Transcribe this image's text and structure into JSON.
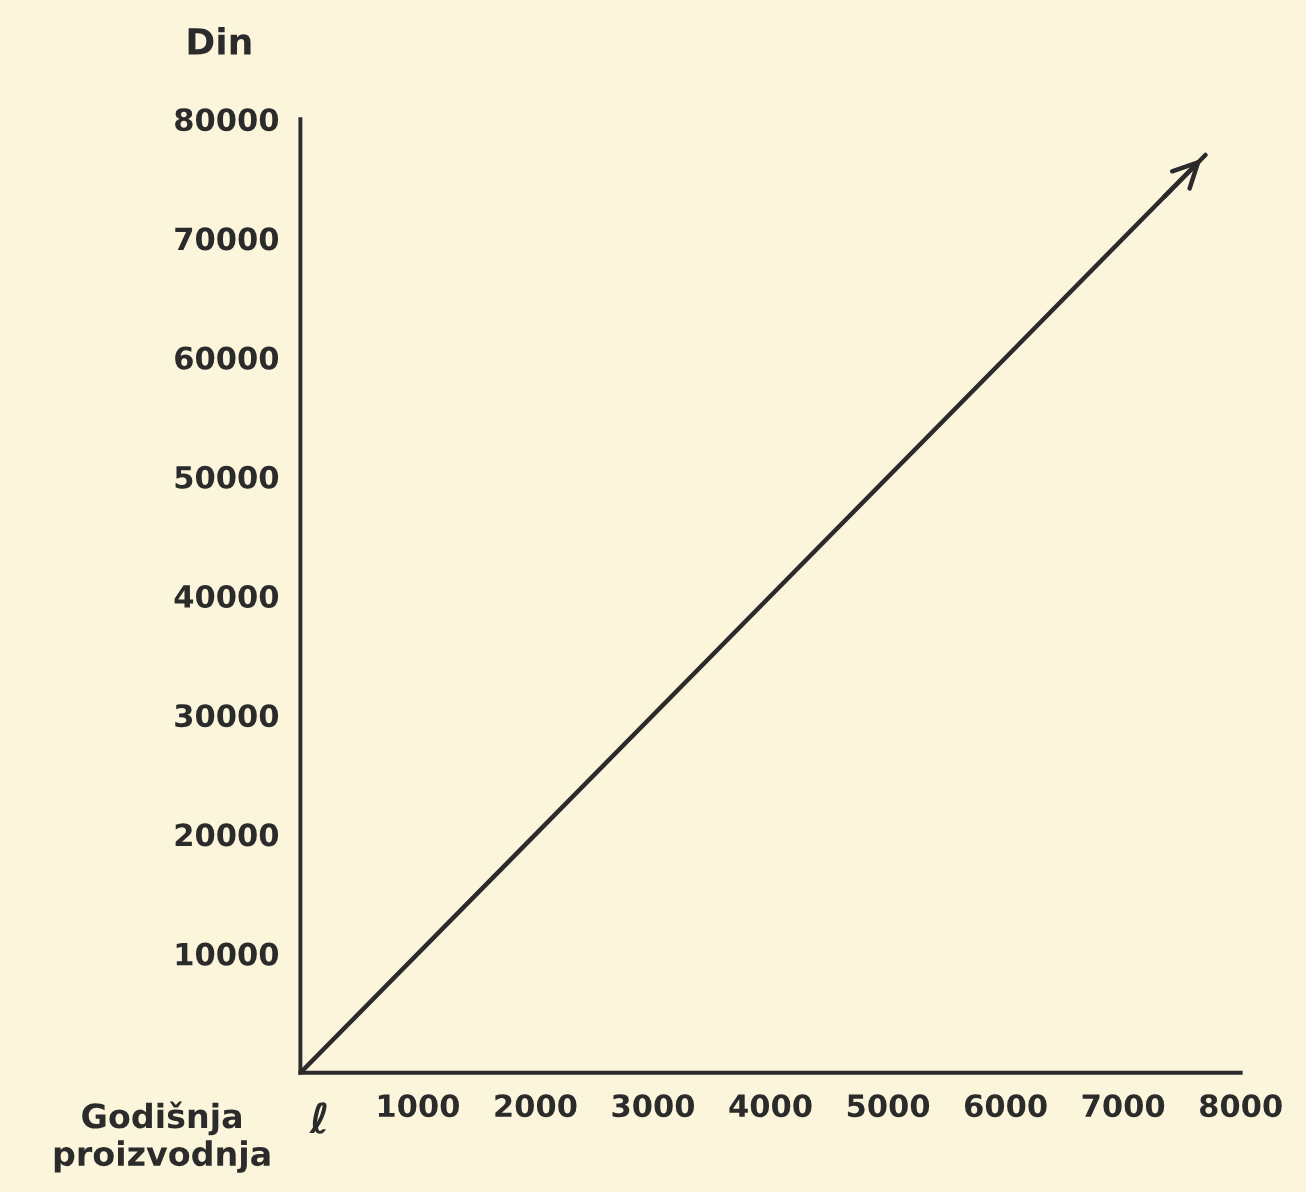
{
  "chart_data": {
    "type": "line",
    "ylabel": "Din",
    "xlabel": "Godišnja proizvodnja",
    "annotations": [
      "ℓ"
    ],
    "x": [
      0,
      7700
    ],
    "series": [
      {
        "color": "#2b2b2b",
        "values": [
          0,
          77000
        ]
      }
    ],
    "xlim": [
      0,
      8000
    ],
    "ylim": [
      0,
      80000
    ],
    "xticks": [
      1000,
      2000,
      3000,
      4000,
      5000,
      6000,
      7000,
      8000
    ],
    "yticks": [
      10000,
      20000,
      30000,
      40000,
      50000,
      60000,
      70000,
      80000
    ],
    "grid": false,
    "legend": false,
    "marker": "none",
    "line_style": "solid"
  }
}
